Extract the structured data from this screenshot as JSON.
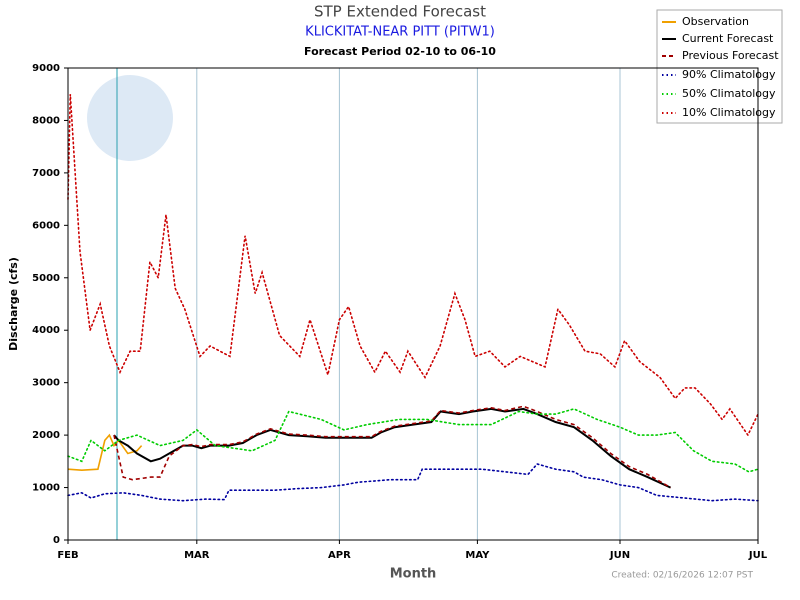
{
  "chart_data": {
    "type": "line",
    "title": "STP Extended Forecast",
    "subtitle": "KLICKITAT-NEAR PITT (PITW1)",
    "period": "Forecast Period  02-10 to  06-10",
    "xlabel": "Month",
    "ylabel": "Discharge (cfs)",
    "created": "Created: 02/16/2026 12:07 PST",
    "xlim": [
      0,
      150
    ],
    "xticks": [
      {
        "value": 0,
        "label": "FEB"
      },
      {
        "value": 28,
        "label": "MAR"
      },
      {
        "value": 59,
        "label": "APR"
      },
      {
        "value": 89,
        "label": "MAY"
      },
      {
        "value": 120,
        "label": "JUN"
      },
      {
        "value": 150,
        "label": "JUL"
      }
    ],
    "ylim": [
      0,
      9000
    ],
    "yticks": [
      0,
      1000,
      2000,
      3000,
      4000,
      5000,
      6000,
      7000,
      8000,
      9000
    ],
    "grid": "x",
    "legend": "upper right",
    "series": [
      {
        "name": "Observation",
        "color": "#f0a000",
        "style": "solid",
        "x": [
          0,
          3,
          6.5,
          8,
          9,
          10,
          11,
          13,
          15,
          16
        ],
        "values": [
          1350,
          1330,
          1350,
          1900,
          2000,
          1800,
          1900,
          1650,
          1700,
          1800
        ]
      },
      {
        "name": "Current Forecast",
        "color": "#000000",
        "style": "solid",
        "x": [
          10,
          11,
          13,
          15,
          18,
          20,
          22,
          25,
          27,
          29,
          31,
          35,
          38,
          41,
          44,
          48,
          52,
          56,
          60,
          63,
          66,
          68,
          71,
          75,
          79,
          81,
          85,
          88,
          92,
          95,
          99,
          102,
          106,
          110,
          114,
          118,
          122,
          126,
          131
        ],
        "values": [
          2000,
          1900,
          1800,
          1650,
          1500,
          1550,
          1650,
          1800,
          1800,
          1750,
          1800,
          1800,
          1850,
          2000,
          2100,
          2000,
          1980,
          1950,
          1950,
          1950,
          1950,
          2050,
          2150,
          2200,
          2250,
          2450,
          2400,
          2450,
          2500,
          2450,
          2500,
          2400,
          2250,
          2150,
          1900,
          1600,
          1350,
          1200,
          1000
        ]
      },
      {
        "name": "Previous Forecast",
        "color": "#a00000",
        "style": "dashed",
        "x": [
          10,
          12,
          14,
          18,
          20,
          22,
          25,
          27,
          29,
          31,
          35,
          38,
          41,
          44,
          48,
          52,
          56,
          60,
          63,
          66,
          68,
          71,
          75,
          79,
          81,
          85,
          88,
          92,
          95,
          99,
          102,
          106,
          110,
          114,
          118,
          122,
          126,
          131
        ],
        "values": [
          2000,
          1200,
          1150,
          1200,
          1200,
          1600,
          1800,
          1820,
          1780,
          1820,
          1820,
          1870,
          2020,
          2120,
          2020,
          2000,
          1970,
          1970,
          1970,
          1970,
          2070,
          2170,
          2220,
          2270,
          2470,
          2420,
          2470,
          2520,
          2470,
          2550,
          2450,
          2300,
          2200,
          1950,
          1650,
          1400,
          1250,
          1000
        ]
      },
      {
        "name": "90% Climatology",
        "color": "#0000a0",
        "style": "dotted",
        "x": [
          0,
          3,
          5,
          8,
          12,
          16,
          20,
          25,
          30,
          34,
          35,
          40,
          45,
          50,
          55,
          60,
          63,
          70,
          76,
          77,
          84,
          90,
          95,
          100,
          102,
          106,
          110,
          112,
          116,
          120,
          124,
          128,
          134,
          140,
          145,
          150
        ],
        "values": [
          850,
          900,
          800,
          880,
          900,
          850,
          780,
          750,
          780,
          770,
          950,
          950,
          950,
          980,
          1000,
          1050,
          1100,
          1150,
          1150,
          1350,
          1350,
          1350,
          1300,
          1250,
          1450,
          1350,
          1300,
          1200,
          1150,
          1050,
          1000,
          850,
          800,
          750,
          780,
          750
        ]
      },
      {
        "name": "50% Climatology",
        "color": "#00cc00",
        "style": "dotted",
        "x": [
          0,
          3,
          5,
          8,
          11,
          15,
          20,
          25,
          28,
          32,
          40,
          45,
          48,
          55,
          60,
          65,
          72,
          78,
          85,
          92,
          98,
          102,
          106,
          110,
          115,
          120,
          124,
          128,
          132,
          136,
          140,
          145,
          148,
          150
        ],
        "values": [
          1600,
          1500,
          1900,
          1700,
          1900,
          2000,
          1800,
          1900,
          2100,
          1800,
          1700,
          1900,
          2450,
          2300,
          2100,
          2200,
          2300,
          2300,
          2200,
          2200,
          2450,
          2400,
          2400,
          2500,
          2300,
          2150,
          2000,
          2000,
          2050,
          1700,
          1500,
          1450,
          1300,
          1350
        ]
      },
      {
        "name": "10% Climatology",
        "color": "#cc0000",
        "style": "dotted",
        "x": [
          0,
          0.5,
          2.6,
          4.8,
          7,
          9,
          11.3,
          13.5,
          15.7,
          17.8,
          19.6,
          21.3,
          23.3,
          25.4,
          28.7,
          30.9,
          35.2,
          38.5,
          40.7,
          42.2,
          46,
          50.4,
          52.6,
          56.5,
          59,
          61,
          63.5,
          66.7,
          69,
          72.2,
          73.9,
          77.6,
          80.9,
          84.1,
          86.3,
          88.5,
          91.7,
          95,
          98.3,
          103.7,
          106.5,
          109,
          112.4,
          115.7,
          118.9,
          121,
          124.3,
          128.7,
          132,
          134.1,
          136.3,
          139.6,
          142.2,
          143.9,
          147.8,
          150
        ],
        "values": [
          6500,
          8500,
          5500,
          4000,
          4500,
          3700,
          3200,
          3600,
          3600,
          5300,
          5000,
          6200,
          4800,
          4400,
          3500,
          3700,
          3500,
          5800,
          4700,
          5100,
          3900,
          3500,
          4200,
          3150,
          4200,
          4450,
          3700,
          3200,
          3600,
          3200,
          3600,
          3100,
          3700,
          4700,
          4200,
          3500,
          3600,
          3300,
          3500,
          3300,
          4400,
          4100,
          3600,
          3550,
          3300,
          3800,
          3400,
          3100,
          2700,
          2900,
          2900,
          2600,
          2300,
          2500,
          2000,
          2400
        ]
      }
    ]
  }
}
